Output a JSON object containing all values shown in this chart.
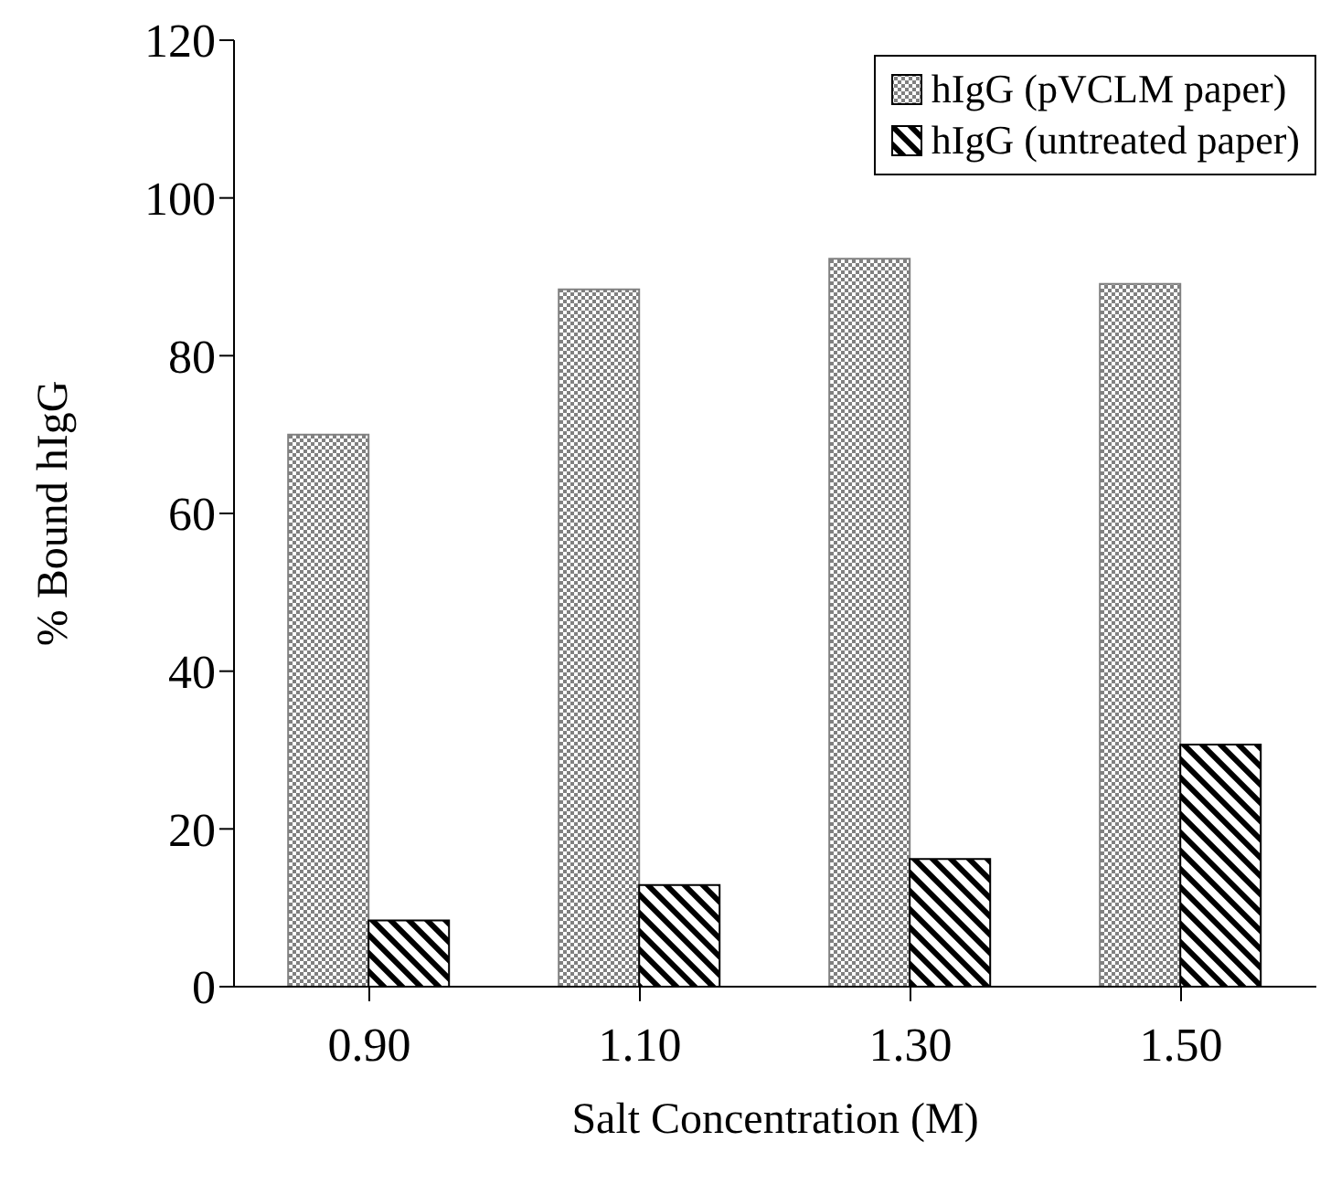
{
  "chart_data": {
    "type": "bar",
    "xlabel": "Salt Concentration (M)",
    "ylabel": "% Bound hIgG",
    "categories": [
      "0.90",
      "1.10",
      "1.30",
      "1.50"
    ],
    "series": [
      {
        "name": "hIgG (pVCLM paper)",
        "color": "#808080",
        "values": [
          70,
          88.4,
          92.3,
          89.1
        ]
      },
      {
        "name": "hIgG (untreated paper)",
        "color": "#000000",
        "values": [
          8.4,
          12.9,
          16.2,
          30.7
        ]
      }
    ],
    "ylim": [
      0,
      120
    ],
    "yticks": [
      0,
      20,
      40,
      60,
      80,
      100,
      120
    ],
    "grid": false,
    "legend": "top right"
  }
}
